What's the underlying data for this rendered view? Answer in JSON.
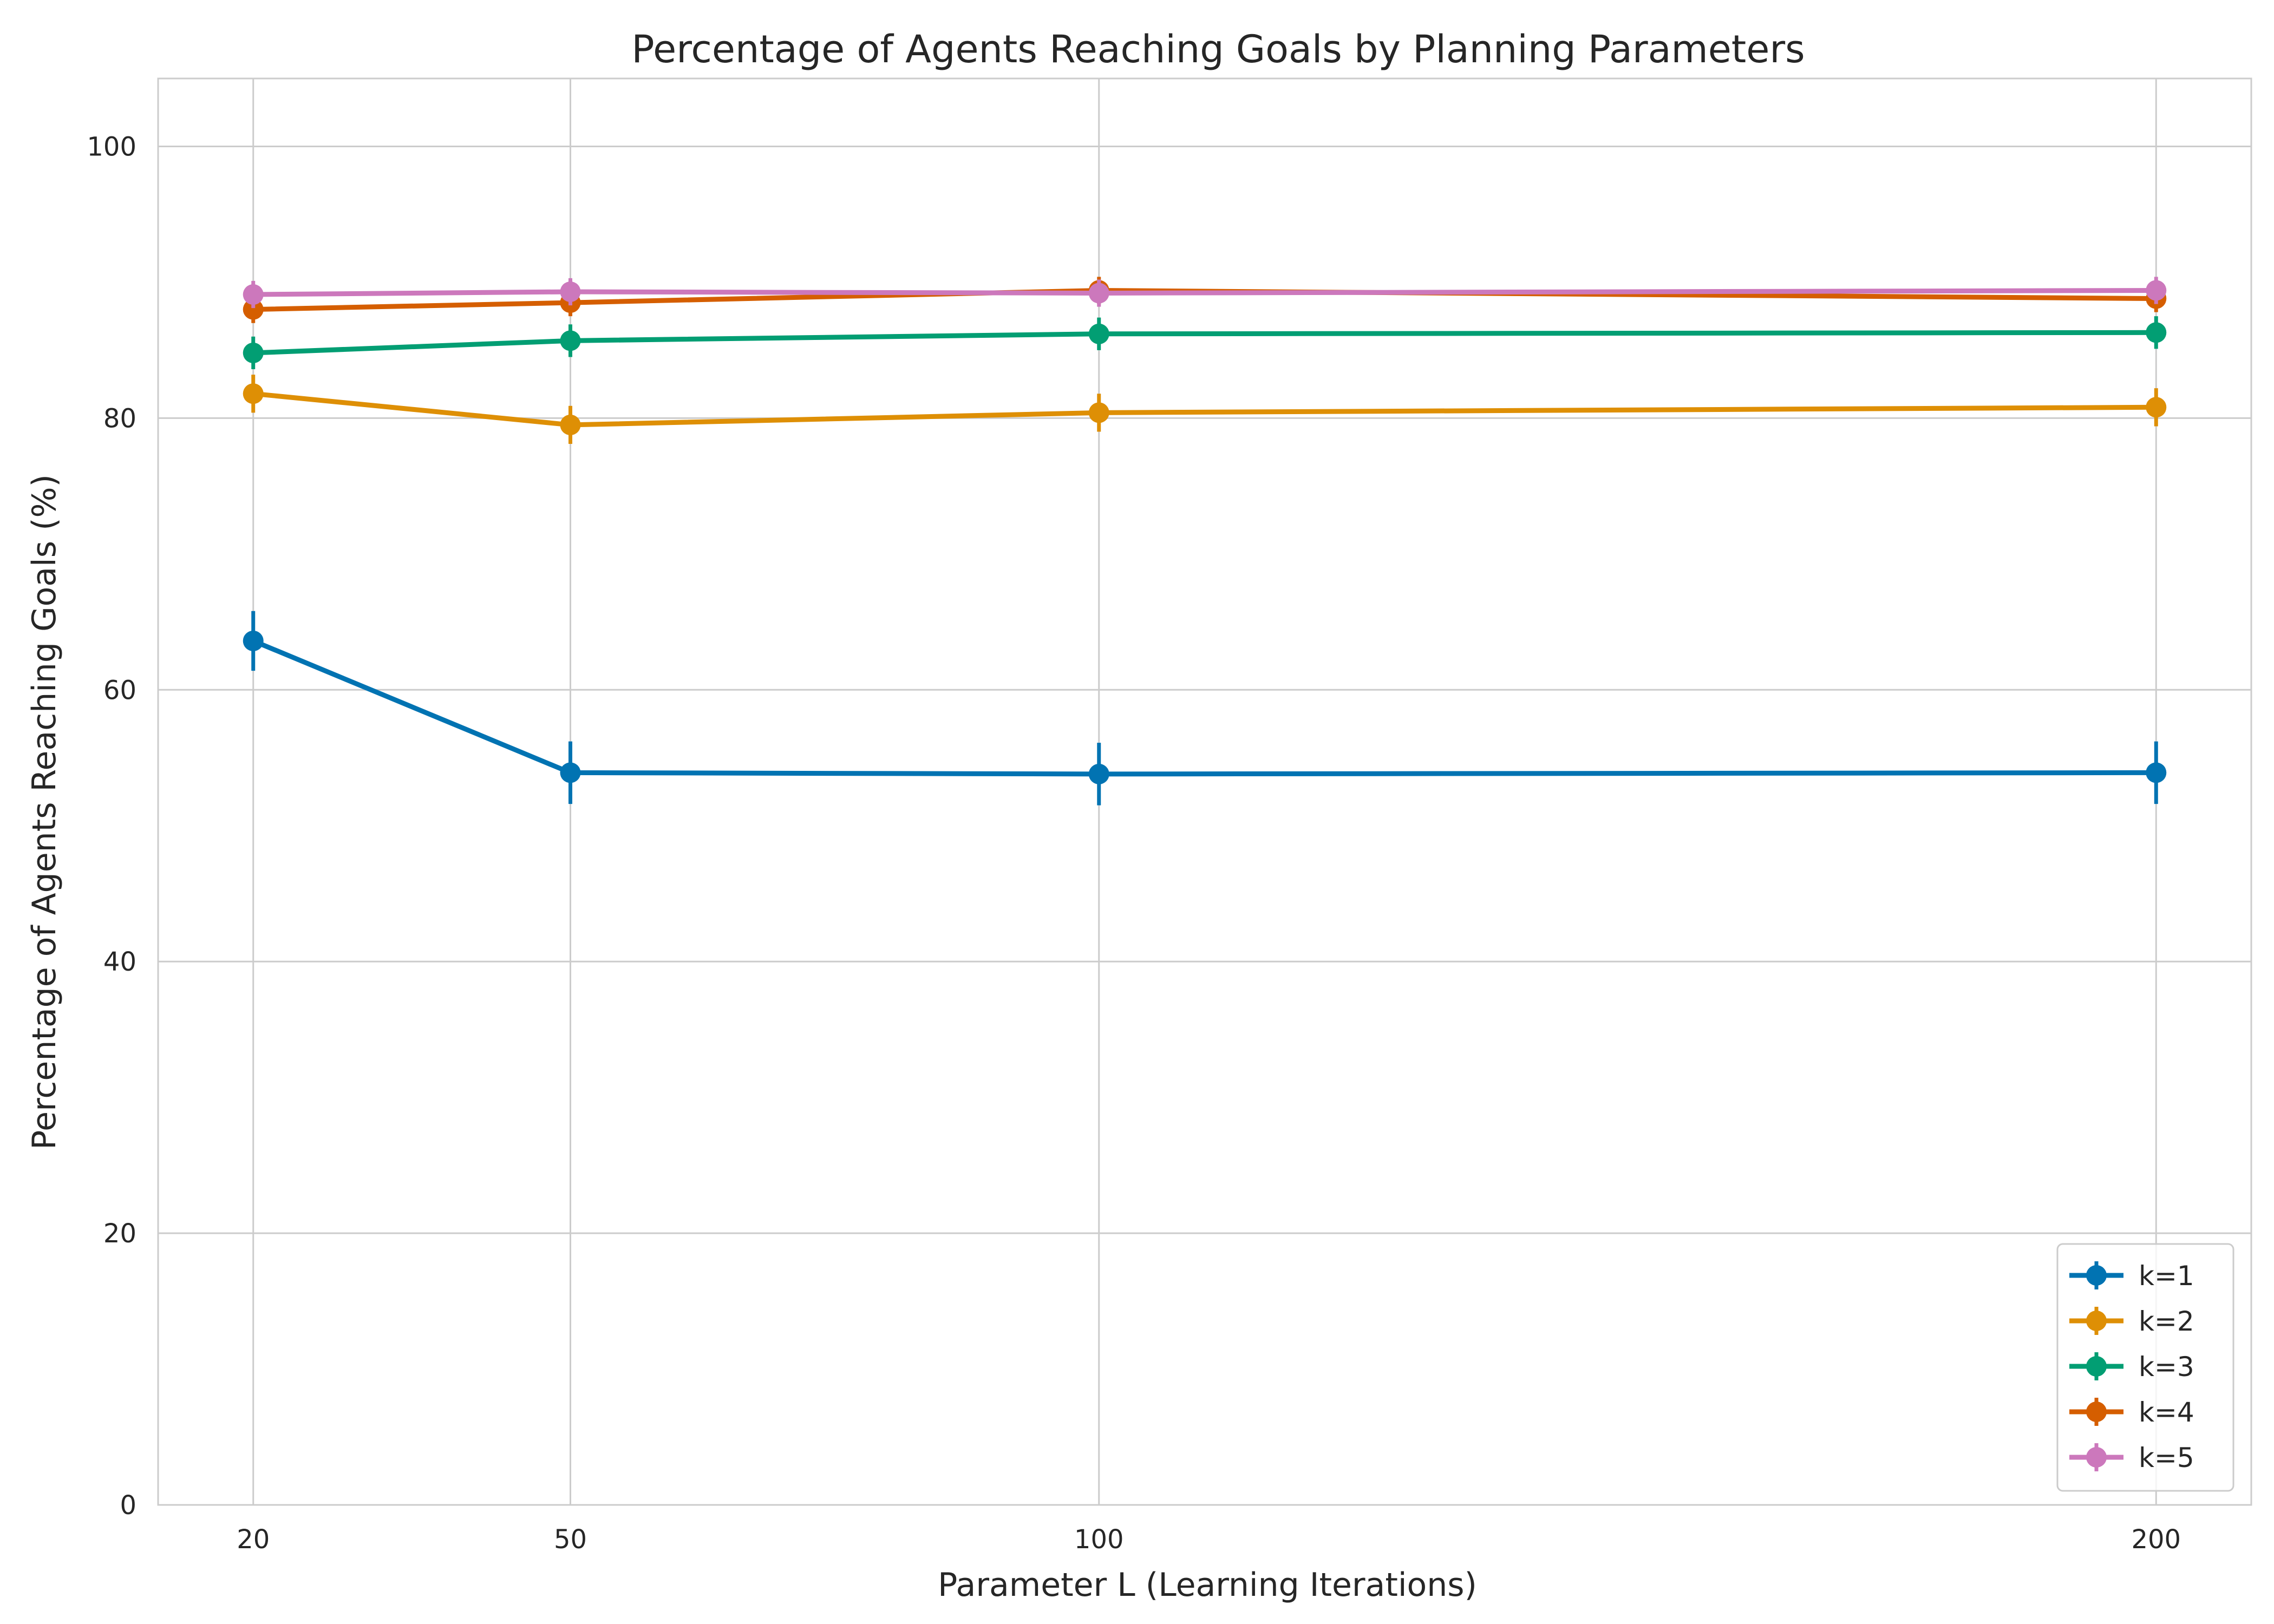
{
  "chart_data": {
    "type": "line",
    "title": "Percentage of Agents Reaching Goals by Planning Parameters",
    "xlabel": "Parameter L (Learning Iterations)",
    "ylabel": "Percentage of Agents Reaching Goals (%)",
    "x": [
      20,
      50,
      100,
      200
    ],
    "x_ticks": [
      "20",
      "50",
      "100",
      "200"
    ],
    "xlim": [
      11,
      209
    ],
    "ylim": [
      0,
      105
    ],
    "y_ticks": [
      0,
      20,
      40,
      60,
      80,
      100
    ],
    "grid": true,
    "legend_position": "lower-right",
    "series": [
      {
        "name": "k=1",
        "color": "#0173b2",
        "values": [
          63.6,
          53.9,
          53.8,
          53.9
        ],
        "errors": [
          2.2,
          2.3,
          2.3,
          2.3
        ]
      },
      {
        "name": "k=2",
        "color": "#de8f05",
        "values": [
          81.8,
          79.5,
          80.4,
          80.8
        ],
        "errors": [
          1.4,
          1.4,
          1.4,
          1.4
        ]
      },
      {
        "name": "k=3",
        "color": "#029e73",
        "values": [
          84.8,
          85.7,
          86.2,
          86.3
        ],
        "errors": [
          1.2,
          1.2,
          1.2,
          1.2
        ]
      },
      {
        "name": "k=4",
        "color": "#d55e00",
        "values": [
          88.0,
          88.5,
          89.4,
          88.8
        ],
        "errors": [
          1.0,
          1.0,
          1.0,
          1.0
        ]
      },
      {
        "name": "k=5",
        "color": "#cc78bc",
        "values": [
          89.1,
          89.3,
          89.2,
          89.4
        ],
        "errors": [
          1.0,
          1.0,
          1.0,
          1.0
        ]
      }
    ]
  }
}
